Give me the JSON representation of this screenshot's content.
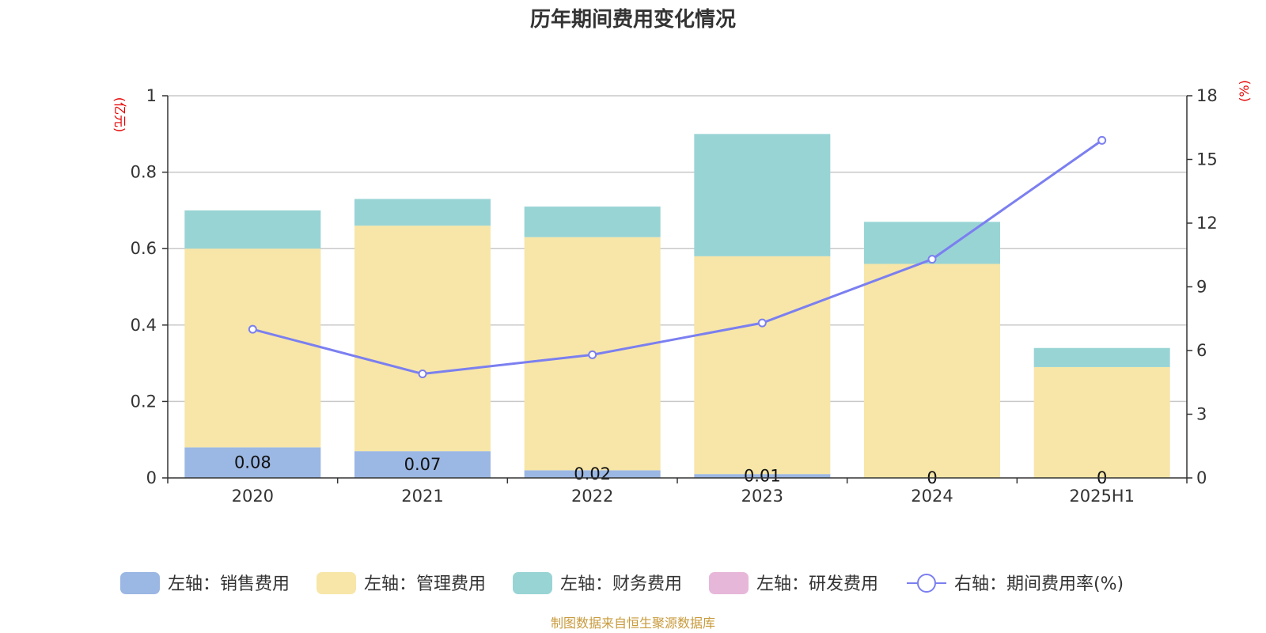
{
  "chart_data": {
    "type": "bar",
    "title": "历年期间费用变化情况",
    "categories": [
      "2020",
      "2021",
      "2022",
      "2023",
      "2024",
      "2025H1"
    ],
    "left_axis": {
      "unit": "(亿元)",
      "ylim": [
        0,
        1
      ],
      "ticks": [
        "0",
        "0.2",
        "0.4",
        "0.6",
        "0.8",
        "1"
      ]
    },
    "right_axis": {
      "unit": "(%)",
      "ylim": [
        0,
        18
      ],
      "ticks": [
        "0",
        "3",
        "6",
        "9",
        "12",
        "15",
        "18"
      ]
    },
    "series": [
      {
        "name": "左轴：销售费用",
        "kind": "bar",
        "axis": "left",
        "color": "#9bb7e3",
        "values": [
          0.08,
          0.07,
          0.02,
          0.01,
          0,
          0
        ],
        "labels": [
          "0.08",
          "0.07",
          "0.02",
          "0.01",
          "0",
          "0"
        ]
      },
      {
        "name": "左轴：管理费用",
        "kind": "bar",
        "axis": "left",
        "color": "#f7e6a8",
        "values": [
          0.52,
          0.59,
          0.61,
          0.57,
          0.56,
          0.29
        ]
      },
      {
        "name": "左轴：财务费用",
        "kind": "bar",
        "axis": "left",
        "color": "#99d4d5",
        "values": [
          0.1,
          0.07,
          0.08,
          0.32,
          0.11,
          0.05
        ]
      },
      {
        "name": "左轴：研发费用",
        "kind": "bar",
        "axis": "left",
        "color": "#e7b7da",
        "values": [
          0,
          0,
          0,
          0,
          0,
          0
        ]
      },
      {
        "name": "右轴：期间费用率(%)",
        "kind": "line",
        "axis": "right",
        "color": "#7b7ff0",
        "values": [
          7.0,
          4.9,
          5.8,
          7.3,
          10.3,
          15.9
        ]
      }
    ],
    "grid": true,
    "legend_position": "bottom"
  },
  "source_note": "制图数据来自恒生聚源数据库"
}
